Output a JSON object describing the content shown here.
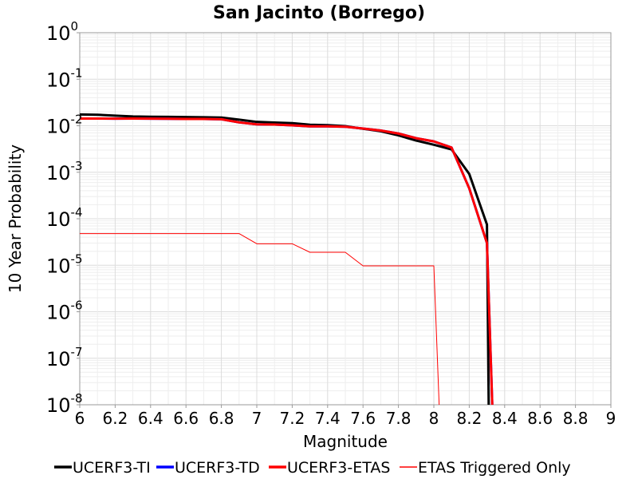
{
  "chart_data": {
    "type": "line",
    "title": "San Jacinto (Borrego)",
    "xlabel": "Magnitude",
    "ylabel": "10 Year Probability",
    "xlim": [
      6,
      9
    ],
    "ylim": [
      1e-08,
      1
    ],
    "yscale": "log",
    "grid": true,
    "legend_position": "bottom",
    "x_ticks": [
      "6",
      "6.2",
      "6.4",
      "6.6",
      "6.8",
      "7",
      "7.2",
      "7.4",
      "7.6",
      "7.8",
      "8",
      "8.2",
      "8.4",
      "8.6",
      "8.8",
      "9"
    ],
    "y_ticks": [
      {
        "base": "10",
        "exp": "0"
      },
      {
        "base": "10",
        "exp": "-1"
      },
      {
        "base": "10",
        "exp": "-2"
      },
      {
        "base": "10",
        "exp": "-3"
      },
      {
        "base": "10",
        "exp": "-4"
      },
      {
        "base": "10",
        "exp": "-5"
      },
      {
        "base": "10",
        "exp": "-6"
      },
      {
        "base": "10",
        "exp": "-7"
      },
      {
        "base": "10",
        "exp": "-8"
      }
    ],
    "series": [
      {
        "name": "UCERF3-TI",
        "color": "#000000",
        "width": 3,
        "points": [
          [
            6.0,
            0.0175
          ],
          [
            6.1,
            0.0172
          ],
          [
            6.2,
            0.0165
          ],
          [
            6.3,
            0.0158
          ],
          [
            6.4,
            0.0156
          ],
          [
            6.5,
            0.0155
          ],
          [
            6.6,
            0.0154
          ],
          [
            6.7,
            0.0152
          ],
          [
            6.8,
            0.015
          ],
          [
            6.9,
            0.0135
          ],
          [
            7.0,
            0.0121
          ],
          [
            7.1,
            0.0117
          ],
          [
            7.2,
            0.0114
          ],
          [
            7.3,
            0.0105
          ],
          [
            7.4,
            0.0103
          ],
          [
            7.5,
            0.0098
          ],
          [
            7.6,
            0.0086
          ],
          [
            7.7,
            0.0076
          ],
          [
            7.8,
            0.0062
          ],
          [
            7.9,
            0.0048
          ],
          [
            8.0,
            0.0039
          ],
          [
            8.1,
            0.0031
          ],
          [
            8.2,
            0.00092
          ],
          [
            8.3,
            7.5e-05
          ],
          [
            8.31,
            1e-08
          ]
        ]
      },
      {
        "name": "UCERF3-TD",
        "color": "#0000ff",
        "width": 3,
        "points": [
          [
            6.0,
            0.0143
          ],
          [
            6.1,
            0.0143
          ],
          [
            6.2,
            0.0142
          ],
          [
            6.3,
            0.0143
          ],
          [
            6.4,
            0.0142
          ],
          [
            6.5,
            0.0141
          ],
          [
            6.6,
            0.014
          ],
          [
            6.7,
            0.014
          ],
          [
            6.8,
            0.0138
          ],
          [
            6.9,
            0.0118
          ],
          [
            7.0,
            0.0107
          ],
          [
            7.1,
            0.0106
          ],
          [
            7.2,
            0.0102
          ],
          [
            7.3,
            0.0097
          ],
          [
            7.4,
            0.0097
          ],
          [
            7.5,
            0.0095
          ],
          [
            7.6,
            0.0087
          ],
          [
            7.7,
            0.0079
          ],
          [
            7.8,
            0.0068
          ],
          [
            7.9,
            0.0054
          ],
          [
            8.0,
            0.0046
          ],
          [
            8.1,
            0.0034
          ],
          [
            8.2,
            0.00045
          ],
          [
            8.3,
            3e-05
          ],
          [
            8.33,
            1e-08
          ]
        ]
      },
      {
        "name": "UCERF3-ETAS",
        "color": "#ff0000",
        "width": 3,
        "points": [
          [
            6.0,
            0.0143
          ],
          [
            6.1,
            0.0143
          ],
          [
            6.2,
            0.0142
          ],
          [
            6.3,
            0.0143
          ],
          [
            6.4,
            0.0142
          ],
          [
            6.5,
            0.0141
          ],
          [
            6.6,
            0.014
          ],
          [
            6.7,
            0.014
          ],
          [
            6.8,
            0.0138
          ],
          [
            6.9,
            0.0118
          ],
          [
            7.0,
            0.0107
          ],
          [
            7.1,
            0.0106
          ],
          [
            7.2,
            0.0102
          ],
          [
            7.3,
            0.0097
          ],
          [
            7.4,
            0.0097
          ],
          [
            7.5,
            0.0095
          ],
          [
            7.6,
            0.0087
          ],
          [
            7.7,
            0.0079
          ],
          [
            7.8,
            0.0068
          ],
          [
            7.9,
            0.0054
          ],
          [
            8.0,
            0.0046
          ],
          [
            8.1,
            0.0034
          ],
          [
            8.2,
            0.00045
          ],
          [
            8.3,
            3e-05
          ],
          [
            8.33,
            1e-08
          ]
        ]
      },
      {
        "name": "ETAS Triggered Only",
        "color": "#ff0000",
        "width": 1,
        "points": [
          [
            6.0,
            4.8e-05
          ],
          [
            6.1,
            4.8e-05
          ],
          [
            6.2,
            4.8e-05
          ],
          [
            6.3,
            4.8e-05
          ],
          [
            6.4,
            4.8e-05
          ],
          [
            6.5,
            4.8e-05
          ],
          [
            6.6,
            4.8e-05
          ],
          [
            6.7,
            4.8e-05
          ],
          [
            6.8,
            4.8e-05
          ],
          [
            6.9,
            4.8e-05
          ],
          [
            7.0,
            2.9e-05
          ],
          [
            7.1,
            2.9e-05
          ],
          [
            7.2,
            2.9e-05
          ],
          [
            7.3,
            1.9e-05
          ],
          [
            7.4,
            1.9e-05
          ],
          [
            7.5,
            1.9e-05
          ],
          [
            7.6,
            9.7e-06
          ],
          [
            7.7,
            9.7e-06
          ],
          [
            7.8,
            9.7e-06
          ],
          [
            7.9,
            9.7e-06
          ],
          [
            8.0,
            9.7e-06
          ],
          [
            8.03,
            1e-08
          ]
        ]
      }
    ]
  }
}
